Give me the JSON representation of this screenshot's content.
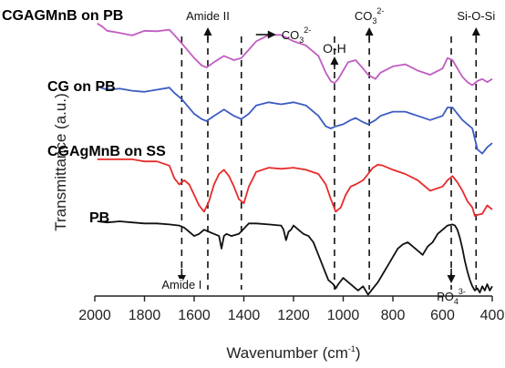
{
  "chart_data": {
    "type": "line",
    "xlabel": "Wavenumber (cm",
    "xlabel_sup": "-1",
    "xlabel_close": ")",
    "ylabel": "Transmittance (a.u.)",
    "xlim": [
      2000,
      400
    ],
    "x_ticks": [
      "2000",
      "1800",
      "1600",
      "1400",
      "1200",
      "1000",
      "800",
      "600",
      "400"
    ],
    "grid": false,
    "series": [
      {
        "name": "CGAGMnB on PB",
        "color": "#c15cc1",
        "x": [
          1990,
          1970,
          1950,
          1900,
          1850,
          1800,
          1750,
          1700,
          1680,
          1650,
          1600,
          1570,
          1550,
          1520,
          1480,
          1440,
          1410,
          1380,
          1350,
          1300,
          1250,
          1200,
          1150,
          1100,
          1070,
          1050,
          1035,
          1020,
          1000,
          980,
          950,
          920,
          900,
          870,
          850,
          800,
          750,
          700,
          650,
          600,
          580,
          560,
          540,
          520,
          500,
          480,
          460,
          440,
          420,
          400
        ],
        "y": [
          0.25,
          0.4,
          0.6,
          0.7,
          0.82,
          0.6,
          0.62,
          0.55,
          0.8,
          1.2,
          1.9,
          2.25,
          2.35,
          2.1,
          1.8,
          2.0,
          1.9,
          1.5,
          1.1,
          0.8,
          0.8,
          1.1,
          1.3,
          1.8,
          2.6,
          3.0,
          3.1,
          2.9,
          2.5,
          2.1,
          2.0,
          2.4,
          2.7,
          2.9,
          2.6,
          2.3,
          2.2,
          2.5,
          2.7,
          2.4,
          1.9,
          2.0,
          2.4,
          2.8,
          3.05,
          3.2,
          3.0,
          2.9,
          3.05,
          2.9
        ]
      },
      {
        "name": "CG on PB",
        "color": "#3c5cc1",
        "x": [
          1990,
          1950,
          1900,
          1850,
          1800,
          1750,
          1700,
          1680,
          1650,
          1600,
          1570,
          1550,
          1520,
          1480,
          1440,
          1410,
          1380,
          1350,
          1300,
          1250,
          1200,
          1150,
          1100,
          1070,
          1050,
          1030,
          1000,
          970,
          950,
          920,
          900,
          870,
          850,
          800,
          750,
          700,
          650,
          600,
          580,
          560,
          540,
          520,
          500,
          480,
          460,
          440,
          420,
          400
        ],
        "y": [
          0.0,
          0.15,
          0.1,
          0.2,
          0.25,
          0.15,
          0.05,
          0.3,
          0.6,
          1.3,
          1.55,
          1.65,
          1.4,
          1.1,
          1.4,
          1.55,
          1.3,
          0.9,
          0.75,
          0.85,
          0.75,
          0.9,
          1.4,
          1.9,
          2.0,
          1.9,
          1.8,
          1.6,
          1.5,
          1.7,
          1.8,
          1.6,
          1.4,
          1.2,
          1.2,
          1.4,
          1.6,
          1.4,
          1.0,
          1.0,
          1.3,
          1.6,
          1.8,
          2.0,
          3.0,
          3.2,
          2.9,
          2.7
        ]
      },
      {
        "name": "CGAgMnB on SS",
        "color": "#e82a2a",
        "x": [
          1990,
          1850,
          1800,
          1750,
          1700,
          1680,
          1660,
          1640,
          1620,
          1600,
          1580,
          1560,
          1540,
          1520,
          1500,
          1480,
          1460,
          1440,
          1420,
          1400,
          1380,
          1350,
          1300,
          1250,
          1200,
          1150,
          1100,
          1070,
          1050,
          1030,
          1010,
          990,
          970,
          950,
          920,
          900,
          880,
          860,
          840,
          800,
          750,
          700,
          650,
          600,
          580,
          560,
          540,
          520,
          500,
          480,
          470,
          460,
          440,
          420,
          400
        ],
        "y": [
          0.3,
          0.3,
          0.4,
          0.4,
          0.6,
          1.2,
          1.5,
          1.3,
          1.5,
          2.0,
          2.5,
          2.8,
          2.3,
          1.5,
          1.0,
          0.8,
          1.1,
          1.6,
          2.2,
          2.4,
          1.6,
          0.9,
          0.7,
          0.75,
          0.7,
          0.8,
          1.0,
          1.5,
          2.2,
          2.8,
          2.6,
          2.0,
          1.6,
          1.5,
          1.3,
          1.0,
          0.7,
          0.55,
          0.6,
          0.8,
          1.0,
          1.3,
          1.8,
          1.6,
          1.3,
          1.1,
          1.4,
          1.8,
          2.3,
          2.6,
          3.0,
          2.95,
          2.9,
          2.5,
          2.7
        ]
      },
      {
        "name": "PB",
        "color": "#111111",
        "x": [
          1990,
          1950,
          1900,
          1850,
          1800,
          1750,
          1700,
          1660,
          1640,
          1620,
          1600,
          1580,
          1560,
          1540,
          1520,
          1500,
          1490,
          1480,
          1470,
          1450,
          1420,
          1400,
          1380,
          1350,
          1300,
          1250,
          1240,
          1230,
          1220,
          1210,
          1200,
          1180,
          1160,
          1140,
          1120,
          1100,
          1080,
          1060,
          1040,
          1030,
          1020,
          1000,
          980,
          960,
          940,
          920,
          900,
          880,
          860,
          840,
          820,
          800,
          780,
          760,
          740,
          720,
          700,
          680,
          660,
          640,
          620,
          600,
          580,
          560,
          550,
          540,
          530,
          520,
          510,
          500,
          490,
          480,
          470,
          460,
          450,
          440,
          430,
          420,
          410,
          400
        ],
        "y": [
          0.0,
          0.05,
          0.0,
          0.05,
          0.1,
          0.1,
          0.15,
          0.2,
          0.3,
          0.5,
          0.7,
          0.6,
          0.4,
          0.5,
          0.6,
          0.7,
          1.3,
          0.7,
          0.6,
          0.7,
          0.6,
          0.35,
          0.1,
          0.1,
          0.15,
          0.2,
          0.4,
          0.9,
          0.5,
          0.4,
          0.2,
          0.4,
          0.6,
          0.7,
          1.0,
          1.6,
          2.2,
          2.8,
          3.0,
          3.2,
          3.0,
          2.7,
          2.9,
          3.1,
          3.3,
          3.1,
          3.5,
          3.2,
          2.9,
          2.5,
          2.1,
          1.7,
          1.3,
          1.1,
          1.0,
          1.2,
          1.4,
          1.6,
          1.2,
          1.0,
          0.6,
          0.4,
          0.2,
          0.15,
          0.2,
          0.4,
          0.8,
          1.3,
          1.9,
          2.4,
          2.8,
          3.1,
          3.3,
          3.2,
          3.4,
          3.1,
          3.3,
          3.0,
          3.3,
          3.1
        ]
      }
    ],
    "annotations": [
      {
        "id": "amide-ii",
        "text": "Amide II",
        "x": 1545,
        "direction": "up"
      },
      {
        "id": "carbonate-1",
        "text": "CO",
        "sub": "3",
        "sup": "2-",
        "x": 1410,
        "direction": "right"
      },
      {
        "id": "oh",
        "text": "O-H",
        "x": 1035,
        "direction": "up"
      },
      {
        "id": "carbonate-2",
        "text": "CO",
        "sub": "3",
        "sup": "2-",
        "x": 895,
        "direction": "up"
      },
      {
        "id": "si-o-si",
        "text": "Si-O-Si",
        "x": 465,
        "direction": "up"
      },
      {
        "id": "amide-i",
        "text": "Amide I",
        "x": 1650,
        "direction": "down"
      },
      {
        "id": "phosphate",
        "text": "PO",
        "sub": "4",
        "sup": "3-",
        "x": 565,
        "direction": "down"
      }
    ]
  }
}
